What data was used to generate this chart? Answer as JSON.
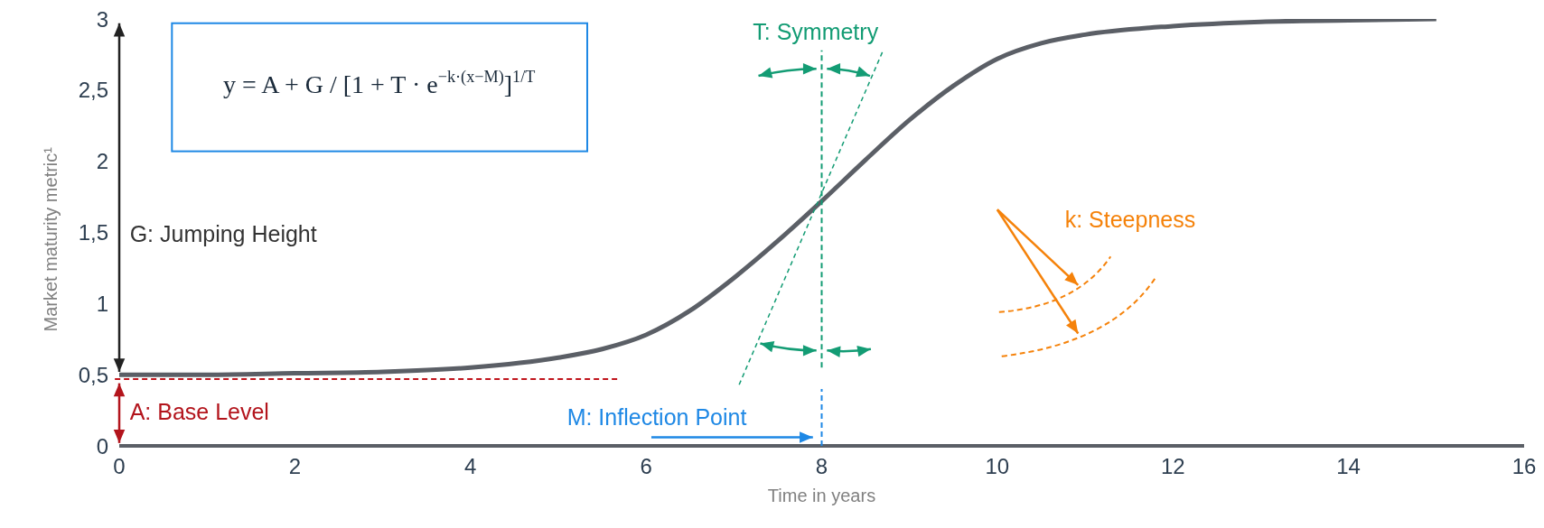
{
  "chart_data": {
    "type": "line",
    "xlabel": "Time in years",
    "ylabel": "Market maturity metric¹",
    "x": [
      0,
      1,
      2,
      3,
      4,
      5,
      5.5,
      6,
      6.5,
      7,
      7.5,
      8,
      8.5,
      9,
      9.5,
      10,
      10.5,
      11,
      12,
      13,
      14,
      15
    ],
    "series": [
      {
        "color": "#5b5f66",
        "values": [
          0.5,
          0.5,
          0.51,
          0.52,
          0.55,
          0.62,
          0.68,
          0.78,
          0.95,
          1.18,
          1.44,
          1.72,
          2.01,
          2.29,
          2.53,
          2.72,
          2.83,
          2.89,
          2.95,
          2.98,
          2.99,
          3.0
        ]
      }
    ],
    "xlim": [
      0,
      16
    ],
    "xticks": [
      0,
      2,
      4,
      6,
      8,
      10,
      12,
      14,
      16
    ],
    "ylim": [
      0,
      3
    ],
    "yticks": [
      0,
      {
        "value": 0.5,
        "label": "0,5"
      },
      1,
      {
        "value": 1.5,
        "label": "1,5"
      },
      2,
      {
        "value": 2.5,
        "label": "2,5"
      },
      3
    ],
    "marker": "none",
    "ref_lines": [
      {
        "axis": "y",
        "value": 0.47,
        "color": "#c0141c",
        "line_style": "dashed"
      },
      {
        "axis": "x",
        "value": 8,
        "color": "#139c74",
        "line_style": "dashed"
      },
      {
        "axis": "x",
        "value": 8,
        "color": "#1e88e5",
        "line_style": "dashed"
      }
    ],
    "annotations": [
      "y = A + G / [1 + T · e$^{−k·(x−M)}$]$^{1/T}$",
      "G: Jumping Height",
      "A: Base Level",
      "M: Inflection Point",
      "T: Symmetry",
      "k: Steepness"
    ]
  }
}
